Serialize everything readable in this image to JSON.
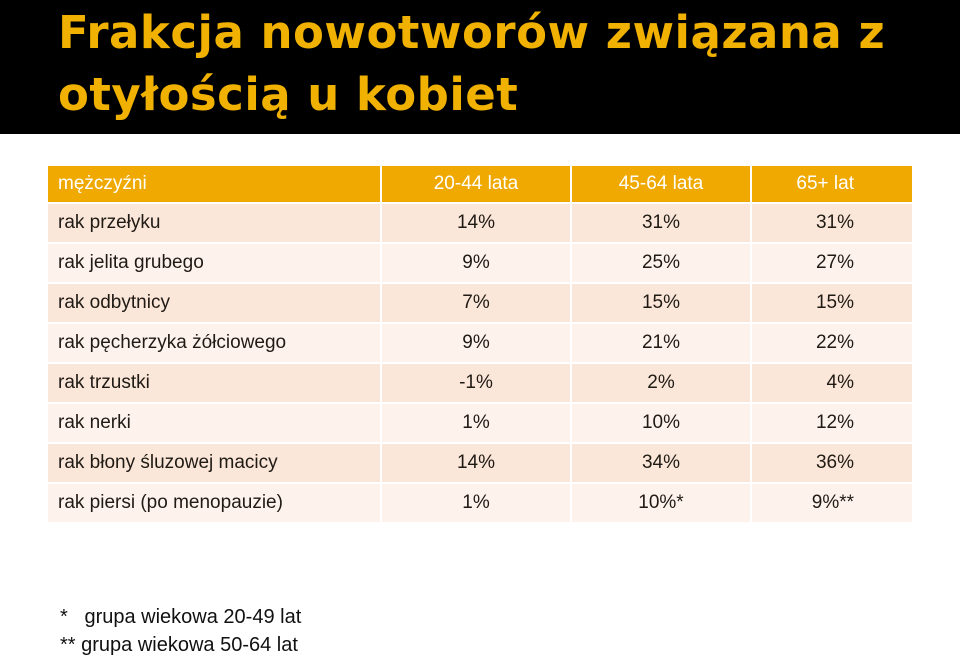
{
  "title": {
    "line1": "Frakcja nowotworów związana z",
    "line2": "otyłością u kobiet"
  },
  "table": {
    "headers": [
      "mężczyźni",
      "20-44 lata",
      "45-64 lata",
      "65+ lat"
    ],
    "rows": [
      [
        "rak przełyku",
        "14%",
        "31%",
        "31%"
      ],
      [
        "rak jelita grubego",
        "9%",
        "25%",
        "27%"
      ],
      [
        "rak odbytnicy",
        "7%",
        "15%",
        "15%"
      ],
      [
        "rak pęcherzyka żółciowego",
        "9%",
        "21%",
        "22%"
      ],
      [
        "rak trzustki",
        "-1%",
        "2%",
        "4%"
      ],
      [
        "rak nerki",
        "1%",
        "10%",
        "12%"
      ],
      [
        "rak błony śluzowej macicy",
        "14%",
        "34%",
        "36%"
      ],
      [
        "rak piersi (po menopauzie)",
        "1%",
        "10%*",
        "9%**"
      ]
    ]
  },
  "footnotes": [
    "*   grupa wiekowa 20-49 lat",
    "** grupa wiekowa 50-64 lat"
  ],
  "colors": {
    "title_bar": "#000000",
    "title_text": "#f0b100",
    "header_bg": "#efa900",
    "row_odd": "#fbe7d9",
    "row_even": "#fdf3ec"
  }
}
